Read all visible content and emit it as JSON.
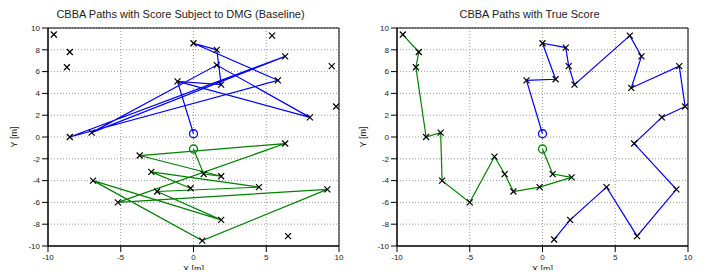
{
  "chart_data": [
    {
      "type": "line",
      "title": "CBBA Paths with Score Subject to DMG (Baseline)",
      "x_label": "X [m]",
      "y_label": "Y [m]",
      "xlim": [
        -10,
        10
      ],
      "ylim": [
        -10,
        10
      ],
      "xticks": [
        -10,
        -5,
        0,
        5,
        10
      ],
      "yticks": [
        -10,
        -8,
        -6,
        -4,
        -2,
        0,
        2,
        4,
        6,
        8,
        10
      ],
      "grid": true,
      "series": [
        {
          "color": "#0000ff",
          "marker": "none",
          "line_style": "solid",
          "x": [
            0,
            -1.1,
            1.9,
            1.6,
            0,
            5.8,
            -8.5,
            6.3,
            -7,
            1.6,
            8,
            -1.1
          ],
          "y": [
            0.3,
            5.1,
            4.8,
            8.0,
            8.6,
            5.2,
            0,
            7.4,
            0.4,
            6.6,
            1.8,
            5.1
          ]
        },
        {
          "color": "#008000",
          "marker": "none",
          "line_style": "solid",
          "x": [
            0,
            0.7,
            1.9,
            -3.7,
            6.3,
            -5.2,
            9.2,
            0.6,
            -6.9,
            1.9,
            -2.5,
            4.5,
            -2.9,
            -0.2
          ],
          "y": [
            -1.1,
            -3.4,
            -3.6,
            -1.7,
            -0.6,
            -6.0,
            -4.8,
            -9.5,
            -4.0,
            -7.6,
            -5.0,
            -4.6,
            -3.2,
            -4.7
          ]
        },
        {
          "color": "#000000",
          "marker": "x",
          "line_style": "none",
          "x": [
            -1.1,
            1.9,
            1.6,
            0,
            5.8,
            -8.5,
            6.3,
            -7,
            1.6,
            8,
            0.7,
            1.9,
            -3.7,
            6.3,
            -5.2,
            9.2,
            0.6,
            -6.9,
            1.9,
            -2.5,
            4.5,
            -2.9,
            -0.2,
            -9.6,
            -8.5,
            -8.7,
            5.4,
            9.5,
            9.8,
            6.5
          ],
          "y": [
            5.1,
            4.8,
            8.0,
            8.6,
            5.2,
            0,
            7.4,
            0.4,
            6.6,
            1.8,
            -3.4,
            -3.6,
            -1.7,
            -0.6,
            -6.0,
            -4.8,
            -9.5,
            -4.0,
            -7.6,
            -5.0,
            -4.6,
            -3.2,
            -4.7,
            9.4,
            7.8,
            6.4,
            9.3,
            6.5,
            2.8,
            -9.1
          ]
        },
        {
          "color": "#0000ff",
          "marker": "circle",
          "line_style": "none",
          "x": [
            0
          ],
          "y": [
            0.3
          ]
        },
        {
          "color": "#008000",
          "marker": "circle",
          "line_style": "none",
          "x": [
            0
          ],
          "y": [
            -1.1
          ]
        }
      ]
    },
    {
      "type": "line",
      "title": "CBBA Paths with True Score",
      "x_label": "X [m]",
      "y_label": "Y [m]",
      "xlim": [
        -10,
        10
      ],
      "ylim": [
        -10,
        10
      ],
      "xticks": [
        -10,
        -5,
        0,
        5,
        10
      ],
      "yticks": [
        -10,
        -8,
        -6,
        -4,
        -2,
        0,
        2,
        4,
        6,
        8,
        10
      ],
      "grid": true,
      "series": [
        {
          "color": "#0000ff",
          "marker": "none",
          "line_style": "solid",
          "x": [
            0,
            -1.1,
            0.9,
            0,
            1.6,
            1.8,
            2.2,
            6,
            6.8,
            6.1,
            9.4,
            9.8,
            8.2,
            6.3,
            9.2,
            6.5,
            4.4,
            1.9,
            0.8
          ],
          "y": [
            0.3,
            5.2,
            5.3,
            8.6,
            8.2,
            6.5,
            4.8,
            9.3,
            7.4,
            4.5,
            6.5,
            2.8,
            1.8,
            -0.6,
            -4.8,
            -9.1,
            -4.6,
            -7.6,
            -9.4
          ]
        },
        {
          "color": "#008000",
          "marker": "none",
          "line_style": "solid",
          "x": [
            0,
            0.7,
            2.0,
            -0.2,
            -2.0,
            -2.6,
            -3.3,
            -5.0,
            -6.9,
            -7.0,
            -8.0,
            -8.7,
            -8.5,
            -9.6
          ],
          "y": [
            -1.1,
            -3.4,
            -3.7,
            -4.6,
            -5.0,
            -3.4,
            -1.8,
            -6.0,
            -4.0,
            0.4,
            0.0,
            6.4,
            7.8,
            9.4
          ]
        },
        {
          "color": "#000000",
          "marker": "x",
          "line_style": "none",
          "x": [
            -1.1,
            0.9,
            0,
            1.6,
            1.8,
            2.2,
            6,
            6.8,
            6.1,
            9.4,
            9.8,
            8.2,
            6.3,
            9.2,
            6.5,
            4.4,
            1.9,
            0.8,
            0.7,
            2.0,
            -0.2,
            -2.0,
            -2.6,
            -3.3,
            -5.0,
            -6.9,
            -7.0,
            -8.0,
            -8.7,
            -8.5,
            -9.6
          ],
          "y": [
            5.2,
            5.3,
            8.6,
            8.2,
            6.5,
            4.8,
            9.3,
            7.4,
            4.5,
            6.5,
            2.8,
            1.8,
            -0.6,
            -4.8,
            -9.1,
            -4.6,
            -7.6,
            -9.4,
            -3.4,
            -3.7,
            -4.6,
            -5.0,
            -3.4,
            -1.8,
            -6.0,
            -4.0,
            0.4,
            0.0,
            6.4,
            7.8,
            9.4
          ]
        },
        {
          "color": "#0000ff",
          "marker": "circle",
          "line_style": "none",
          "x": [
            0
          ],
          "y": [
            0.3
          ]
        },
        {
          "color": "#008000",
          "marker": "circle",
          "line_style": "none",
          "x": [
            0
          ],
          "y": [
            -1.1
          ]
        }
      ]
    }
  ]
}
